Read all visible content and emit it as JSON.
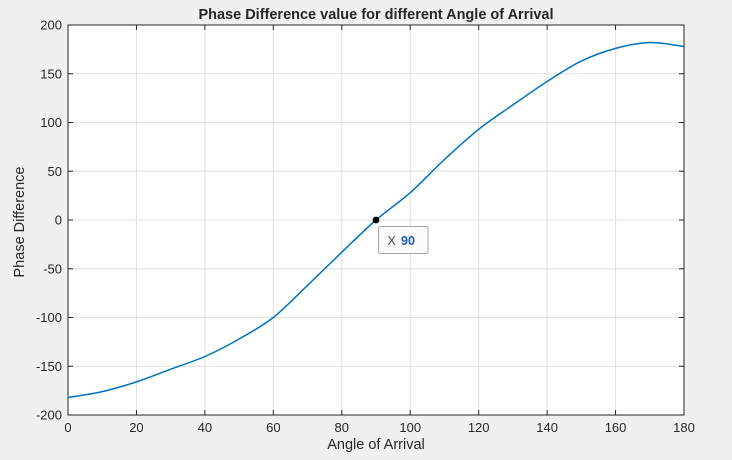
{
  "figure": {
    "background": "#f0f0f0",
    "axes_background": "#ffffff",
    "grid_color": "#e0e0e0",
    "axis_color": "#262626",
    "tick_label_color": "#262626"
  },
  "chart_data": {
    "type": "line",
    "title": "Phase Difference value for different Angle of Arrival",
    "xlabel": "Angle of Arrival",
    "ylabel": "Phase Difference",
    "xlim": [
      0,
      180
    ],
    "ylim": [
      -200,
      200
    ],
    "xticks": [
      0,
      20,
      40,
      60,
      80,
      100,
      120,
      140,
      160,
      180
    ],
    "yticks": [
      -200,
      -150,
      -100,
      -50,
      0,
      50,
      100,
      150,
      200
    ],
    "grid": true,
    "legend": "none",
    "series": [
      {
        "name": "Phase Difference",
        "color": "#0072bd",
        "x": [
          0,
          10,
          20,
          30,
          40,
          50,
          60,
          70,
          80,
          90,
          100,
          110,
          120,
          130,
          140,
          150,
          160,
          170,
          180
        ],
        "y": [
          -182,
          -176,
          -166,
          -153,
          -140,
          -122,
          -100,
          -67,
          -33,
          0,
          28,
          62,
          93,
          118,
          142,
          163,
          176,
          182,
          178
        ]
      }
    ],
    "annotations": [
      {
        "type": "datatip",
        "label": "X",
        "value": "90",
        "x": 90,
        "y": 0,
        "marker_color": "#000000",
        "box_background": "#fbfbfb",
        "box_border": "#a6a6a6"
      }
    ]
  }
}
